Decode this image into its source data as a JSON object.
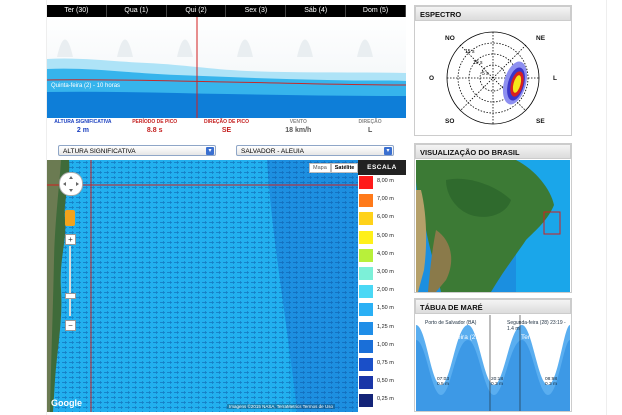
{
  "forecast": {
    "days": [
      "Ter (30)",
      "Qua (1)",
      "Qui (2)",
      "Sex (3)",
      "Sáb (4)",
      "Dom (5)"
    ],
    "caption": "Quinta-feira (2) - 10 horas"
  },
  "readouts": [
    {
      "label": "ALTURA SIGNIFICATIVA",
      "value": "2 m",
      "label_color": "#1a3fbf",
      "value_color": "#1a3fbf"
    },
    {
      "label": "PERÍODO DE PICO",
      "value": "8.8 s",
      "label_color": "#c41f1f",
      "value_color": "#c41f1f"
    },
    {
      "label": "DIREÇÃO DE PICO",
      "value": "SE",
      "label_color": "#c41f1f",
      "value_color": "#c41f1f"
    },
    {
      "label": "VENTO",
      "value": "18 km/h",
      "label_color": "#888888",
      "value_color": "#555555"
    },
    {
      "label": "DIREÇÃO",
      "value": "L",
      "label_color": "#888888",
      "value_color": "#555555"
    }
  ],
  "controls": {
    "variable_select": "ALTURA SIGNIFICATIVA",
    "location_select": "SALVADOR - ALEUIA"
  },
  "map": {
    "type_buttons": [
      "Mapa",
      "Satélite"
    ],
    "active_type": "Satélite",
    "zoom_in": "+",
    "zoom_out": "−",
    "google_logo": "Google",
    "attribution": "Imagens ©2015 NASA, TerraMetrics   Termos de Uso"
  },
  "legend": {
    "title": "ESCALA",
    "items": [
      {
        "label": "8,00 m",
        "color": "#ff1a1a"
      },
      {
        "label": "7,00 m",
        "color": "#ff7a1a"
      },
      {
        "label": "6,00 m",
        "color": "#ffd21a"
      },
      {
        "label": "5,00 m",
        "color": "#fff01a"
      },
      {
        "label": "4,00 m",
        "color": "#b8f03a"
      },
      {
        "label": "3,00 m",
        "color": "#7cf0d8"
      },
      {
        "label": "2,00 m",
        "color": "#4ad8f5"
      },
      {
        "label": "1,50 m",
        "color": "#2ab0f5"
      },
      {
        "label": "1,25 m",
        "color": "#1f8ee8"
      },
      {
        "label": "1,00 m",
        "color": "#1a6fd8"
      },
      {
        "label": "0,75 m",
        "color": "#1a4fc8"
      },
      {
        "label": "0,50 m",
        "color": "#1a36a8"
      },
      {
        "label": "0,25 m",
        "color": "#142478"
      }
    ]
  },
  "espectro": {
    "title": "ESPECTRO",
    "directions": [
      "NO",
      "NE",
      "O",
      "L",
      "SO",
      "SE"
    ],
    "rings": [
      "15 s",
      "10 s",
      "5 s"
    ]
  },
  "brasil": {
    "title": "VISUALIZAÇÃO DO BRASIL"
  },
  "mare": {
    "title": "TÁBUA DE MARÉ",
    "location": "Porto de Salvador (BA)",
    "date_time": "Segunda-feira (28) 23:19 - 1.4 m",
    "days": [
      "Segunda-feira (29)",
      "Terça-feira"
    ],
    "lows": [
      {
        "time": "07:03",
        "height": "0.5 m"
      },
      {
        "time": "20:18",
        "height": "0.3 m"
      },
      {
        "time": "08:98",
        "height": "0.3 m"
      }
    ]
  },
  "colors": {
    "wave_light": "#aee3f7",
    "wave_mid": "#36b4ec",
    "wave_dark": "#0e7ed8",
    "cursor_line": "#d21f1f"
  }
}
